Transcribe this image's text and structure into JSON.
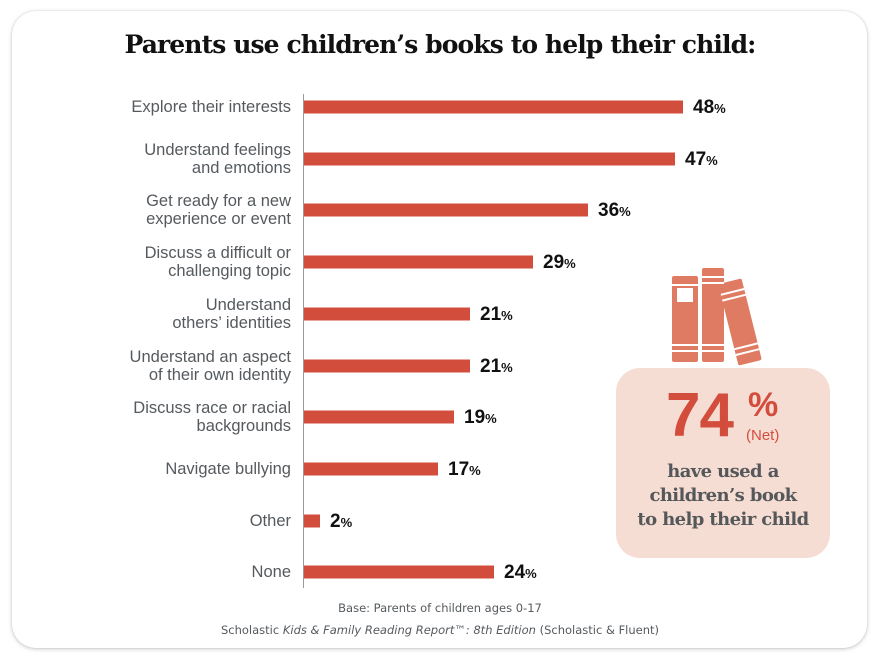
{
  "title": "Parents use children’s books to help their child:",
  "chart_data": {
    "type": "bar",
    "orientation": "horizontal",
    "title": "Parents use children’s books to help their child:",
    "categories": [
      "Explore their interests",
      "Understand feelings and emotions",
      "Get ready for a new experience or event",
      "Discuss a difficult or challenging topic",
      "Understand others’ identities",
      "Understand an aspect of their own identity",
      "Discuss race or racial backgrounds",
      "Navigate bullying",
      "Other",
      "None"
    ],
    "values": [
      48,
      47,
      36,
      29,
      21,
      21,
      19,
      17,
      2,
      24
    ],
    "unit": "%",
    "xlabel": "",
    "ylabel": "",
    "grid": false,
    "bar_color": "#d34d3d",
    "annotation": {
      "value": "74%",
      "qualifier": "(Net)",
      "text": "have used a children’s book to help their child"
    }
  },
  "rows": [
    {
      "line1": "Explore their interests",
      "line2": "",
      "value": "48",
      "pct": "%"
    },
    {
      "line1": "Understand feelings",
      "line2": "and emotions",
      "value": "47",
      "pct": "%"
    },
    {
      "line1": "Get ready for a new",
      "line2": "experience or event",
      "value": "36",
      "pct": "%"
    },
    {
      "line1": "Discuss a difficult or",
      "line2": "challenging topic",
      "value": "29",
      "pct": "%"
    },
    {
      "line1": "Understand",
      "line2": "others’ identities",
      "value": "21",
      "pct": "%"
    },
    {
      "line1": "Understand an aspect",
      "line2": "of their own identity",
      "value": "21",
      "pct": "%"
    },
    {
      "line1": "Discuss race or racial",
      "line2": "backgrounds",
      "value": "19",
      "pct": "%"
    },
    {
      "line1": "Navigate bullying",
      "line2": "",
      "value": "17",
      "pct": "%"
    },
    {
      "line1": "Other",
      "line2": "",
      "value": "2",
      "pct": "%"
    },
    {
      "line1": "None",
      "line2": "",
      "value": "24",
      "pct": "%"
    }
  ],
  "callout": {
    "number": "74",
    "percent": "%",
    "net": "(Net)",
    "line1": "have used a",
    "line2": "children’s book",
    "line3": "to help their child",
    "icon": "books-icon",
    "bg_color": "#f6ddd3",
    "accent_color": "#d34d3d",
    "icon_color": "#e07b63"
  },
  "footer": {
    "base": "Base: Parents of children ages 0-17",
    "source_prefix": "Scholastic ",
    "source_italic": "Kids & Family Reading Report™: 8th Edition",
    "source_suffix": " (Scholastic & Fluent)"
  }
}
